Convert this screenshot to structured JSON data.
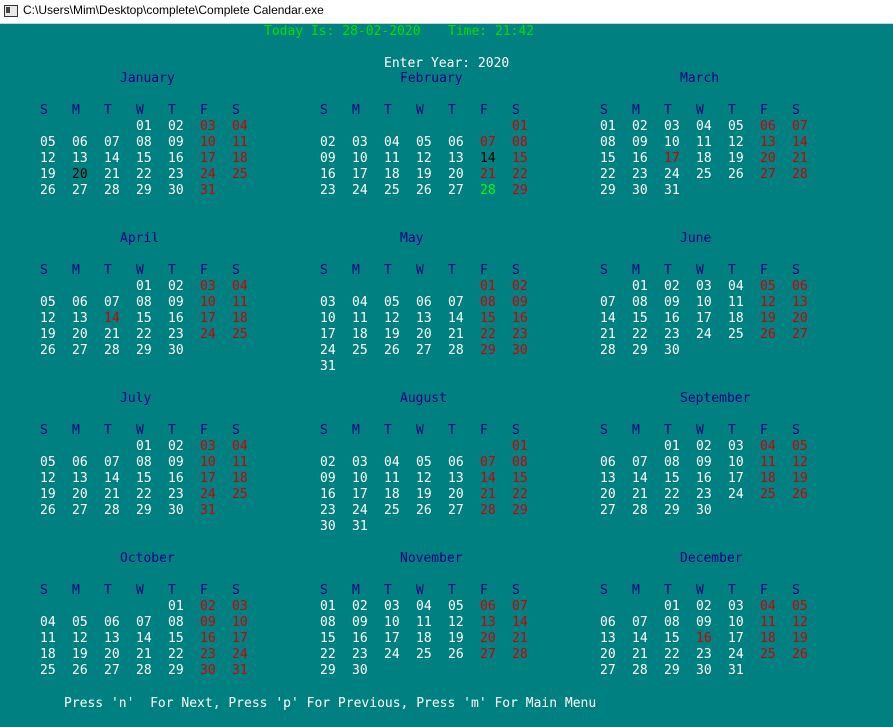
{
  "window": {
    "title": "C:\\Users\\Mim\\Desktop\\complete\\Complete Calendar.exe",
    "icon": "console-app-icon"
  },
  "header": {
    "today_label": "Today Is: 28-02-2020",
    "time_label": "Time: 21:42"
  },
  "prompt": {
    "label": "Enter Year: 2020"
  },
  "weekday_headers": [
    "S",
    "M",
    "T",
    "W",
    "T",
    "F",
    "S"
  ],
  "colors": {
    "background": "#008080",
    "month_title": "#000080",
    "weekday": "#ffffff",
    "weekend": "#d00000",
    "today": "#00ff00",
    "marked": "#000000",
    "header_text": "#00e000"
  },
  "months": [
    {
      "name": "January",
      "first_weekday": 3,
      "days": 31,
      "weekend_columns": [
        5,
        6
      ],
      "today": null,
      "black_days": [
        20
      ],
      "red_extra": []
    },
    {
      "name": "February",
      "first_weekday": 6,
      "days": 29,
      "weekend_columns": [
        5,
        6
      ],
      "today": 28,
      "black_days": [
        14
      ],
      "red_extra": []
    },
    {
      "name": "March",
      "first_weekday": 0,
      "days": 31,
      "weekend_columns": [
        5,
        6
      ],
      "today": null,
      "black_days": [],
      "red_extra": [
        17
      ]
    },
    {
      "name": "April",
      "first_weekday": 3,
      "days": 30,
      "weekend_columns": [
        5,
        6
      ],
      "today": null,
      "black_days": [],
      "red_extra": [
        14
      ]
    },
    {
      "name": "May",
      "first_weekday": 5,
      "days": 31,
      "weekend_columns": [
        5,
        6
      ],
      "today": null,
      "black_days": [],
      "red_extra": []
    },
    {
      "name": "June",
      "first_weekday": 1,
      "days": 30,
      "weekend_columns": [
        5,
        6
      ],
      "today": null,
      "black_days": [],
      "red_extra": []
    },
    {
      "name": "July",
      "first_weekday": 3,
      "days": 31,
      "weekend_columns": [
        5,
        6
      ],
      "today": null,
      "black_days": [],
      "red_extra": []
    },
    {
      "name": "August",
      "first_weekday": 6,
      "days": 31,
      "weekend_columns": [
        5,
        6
      ],
      "today": null,
      "black_days": [],
      "red_extra": []
    },
    {
      "name": "September",
      "first_weekday": 2,
      "days": 30,
      "weekend_columns": [
        5,
        6
      ],
      "today": null,
      "black_days": [],
      "red_extra": []
    },
    {
      "name": "October",
      "first_weekday": 4,
      "days": 31,
      "weekend_columns": [
        5,
        6
      ],
      "today": null,
      "black_days": [],
      "red_extra": []
    },
    {
      "name": "November",
      "first_weekday": 0,
      "days": 30,
      "weekend_columns": [
        5,
        6
      ],
      "today": null,
      "black_days": [],
      "red_extra": []
    },
    {
      "name": "December",
      "first_weekday": 2,
      "days": 31,
      "weekend_columns": [
        5,
        6
      ],
      "today": null,
      "black_days": [],
      "red_extra": [
        16
      ]
    }
  ],
  "footer": {
    "instructions": "Press 'n'  For Next, Press 'p' For Previous, Press 'm' For Main Menu"
  }
}
